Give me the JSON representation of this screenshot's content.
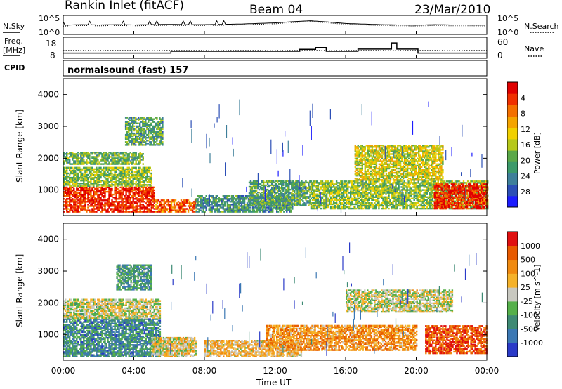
{
  "header": {
    "station": "Rankin Inlet (fitACF)",
    "beam": "Beam 04",
    "date": "23/Mar/2010"
  },
  "side_labels": {
    "nsky": "N.Sky",
    "nsearch": "N.Search",
    "freq_line1": "Freq.",
    "freq_line2": "[MHz]",
    "nave": "Nave",
    "cpid": "CPID"
  },
  "cpid_value": "normalsound (fast) 157",
  "time_axis": {
    "label": "Time UT",
    "ticks": [
      "00:00",
      "04:00",
      "08:00",
      "12:00",
      "16:00",
      "20:00",
      "00:00"
    ],
    "range_hours": [
      0,
      24
    ]
  },
  "chart_data": [
    {
      "type": "line",
      "name": "noise",
      "left_ticks": [
        "10^5",
        "10^0"
      ],
      "right_ticks": [
        "10^5",
        "10^0"
      ],
      "series": [
        {
          "name": "N.Sky",
          "style": "solid"
        },
        {
          "name": "N.Search",
          "style": "dotted"
        }
      ],
      "x_hours": [
        0,
        1,
        2,
        3,
        4,
        5,
        6,
        7,
        8,
        9,
        10,
        11,
        12,
        13,
        14,
        15,
        16,
        17,
        18,
        19,
        20,
        21,
        22,
        23,
        24
      ],
      "values_log10": [
        2.4,
        2.6,
        2.5,
        2.6,
        2.5,
        2.6,
        2.7,
        2.6,
        2.6,
        2.7,
        2.8,
        3.0,
        3.2,
        3.6,
        3.9,
        3.5,
        3.0,
        2.8,
        2.6,
        2.5,
        2.4,
        2.6,
        2.5,
        2.5,
        2.4
      ]
    },
    {
      "type": "line",
      "name": "frequency",
      "left_ticks": [
        "18",
        "8"
      ],
      "right_ticks": [
        "60",
        "0"
      ],
      "series": [
        {
          "name": "Freq. [MHz]",
          "style": "solid"
        },
        {
          "name": "Nave",
          "style": "dotted"
        }
      ],
      "freq_steps": [
        {
          "from": 0,
          "to": 6.1,
          "mhz": 10.0
        },
        {
          "from": 6.1,
          "to": 13.4,
          "mhz": 11.2
        },
        {
          "from": 13.4,
          "to": 14.3,
          "mhz": 12.4
        },
        {
          "from": 14.3,
          "to": 14.9,
          "mhz": 13.6
        },
        {
          "from": 14.9,
          "to": 16.7,
          "mhz": 11.2
        },
        {
          "from": 16.7,
          "to": 18.6,
          "mhz": 12.6
        },
        {
          "from": 18.6,
          "to": 18.9,
          "mhz": 16.6
        },
        {
          "from": 18.9,
          "to": 20.1,
          "mhz": 12.6
        },
        {
          "from": 20.1,
          "to": 24,
          "mhz": 10.0
        }
      ],
      "nave_level": 22
    },
    {
      "type": "heatmap",
      "name": "power",
      "ylabel": "Slant Range [km]",
      "yticks": [
        "1000",
        "2000",
        "3000",
        "4000"
      ],
      "ylim": [
        200,
        4500
      ],
      "colorbar": {
        "label": "Power [dB]",
        "ticks": [
          "4",
          "8",
          "12",
          "16",
          "20",
          "24",
          "28"
        ],
        "colors": [
          "#1c1cff",
          "#2c4fb6",
          "#3e7f9a",
          "#3c9a6a",
          "#5aa848",
          "#b6c81a",
          "#f0d000",
          "#f4a400",
          "#f47000",
          "#f03000",
          "#e00000"
        ]
      },
      "regions": [
        {
          "t0": 0.0,
          "t1": 5.2,
          "r0": 300,
          "r1": 1100,
          "level": 0.9
        },
        {
          "t0": 0.0,
          "t1": 5.0,
          "r0": 1100,
          "r1": 1700,
          "level": 0.45
        },
        {
          "t0": 0.0,
          "t1": 4.5,
          "r0": 1800,
          "r1": 2200,
          "level": 0.4
        },
        {
          "t0": 3.5,
          "t1": 5.6,
          "r0": 2400,
          "r1": 3300,
          "level": 0.35
        },
        {
          "t0": 5.2,
          "t1": 7.5,
          "r0": 300,
          "r1": 700,
          "level": 0.8
        },
        {
          "t0": 7.5,
          "t1": 13.0,
          "r0": 300,
          "r1": 800,
          "level": 0.3
        },
        {
          "t0": 10.5,
          "t1": 14.0,
          "r0": 500,
          "r1": 1300,
          "level": 0.35
        },
        {
          "t0": 14.0,
          "t1": 24.0,
          "r0": 400,
          "r1": 1300,
          "level": 0.45
        },
        {
          "t0": 16.5,
          "t1": 21.5,
          "r0": 1300,
          "r1": 2400,
          "level": 0.55
        },
        {
          "t0": 21.0,
          "t1": 24.0,
          "r0": 400,
          "r1": 1200,
          "level": 0.9
        }
      ]
    },
    {
      "type": "heatmap",
      "name": "velocity",
      "ylabel": "Slant Range [km]",
      "yticks": [
        "1000",
        "2000",
        "3000",
        "4000"
      ],
      "ylim": [
        200,
        4500
      ],
      "colorbar": {
        "label": "Velocity [m s^-1]",
        "ticks": [
          "1000",
          "500",
          "100",
          "25",
          "-25",
          "-100",
          "-500",
          "-1000"
        ],
        "colors": [
          "#2a3ac8",
          "#3b78b4",
          "#3e8a74",
          "#55b04a",
          "#c8c8c0",
          "#f5b22a",
          "#f08a10",
          "#e85a00",
          "#e01010"
        ]
      },
      "regions": [
        {
          "t0": 0.0,
          "t1": 5.5,
          "r0": 300,
          "r1": 1500,
          "level": 0.25
        },
        {
          "t0": 0.0,
          "t1": 5.5,
          "r0": 1500,
          "r1": 2100,
          "level": 0.5
        },
        {
          "t0": 3.0,
          "t1": 5.0,
          "r0": 2400,
          "r1": 3200,
          "level": 0.3
        },
        {
          "t0": 5.0,
          "t1": 7.5,
          "r0": 300,
          "r1": 900,
          "level": 0.55
        },
        {
          "t0": 8.0,
          "t1": 13.5,
          "r0": 300,
          "r1": 800,
          "level": 0.6
        },
        {
          "t0": 11.5,
          "t1": 20.0,
          "r0": 500,
          "r1": 1300,
          "level": 0.7
        },
        {
          "t0": 16.0,
          "t1": 22.0,
          "r0": 1700,
          "r1": 2400,
          "level": 0.5
        },
        {
          "t0": 20.5,
          "t1": 24.0,
          "r0": 400,
          "r1": 1300,
          "level": 0.85
        }
      ]
    }
  ]
}
